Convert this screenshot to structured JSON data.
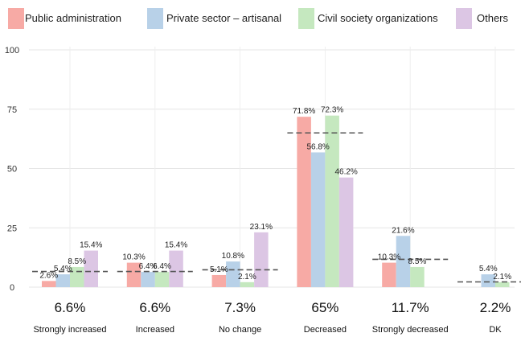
{
  "chart_data": {
    "type": "bar",
    "categories": [
      "Strongly increased",
      "Increased",
      "No change",
      "Decreased",
      "Strongly decreased",
      "DK"
    ],
    "series": [
      {
        "name": "Public administration",
        "color": "#f7aaa5",
        "values": [
          2.6,
          10.3,
          5.1,
          71.8,
          10.3,
          0
        ],
        "labels": [
          "2.6%",
          "10.3%",
          "5.1%",
          "71.8%",
          "10.3%",
          ""
        ]
      },
      {
        "name": "Private sector – artisanal",
        "color": "#b8d1e8",
        "values": [
          5.4,
          6.4,
          10.8,
          56.8,
          21.6,
          5.4
        ],
        "labels": [
          "5.4%",
          "6.4%",
          "10.8%",
          "56.8%",
          "21.6%",
          "5.4%"
        ]
      },
      {
        "name": "Civil society organizations",
        "color": "#c5e8bf",
        "values": [
          8.5,
          6.4,
          2.1,
          72.3,
          8.5,
          2.1
        ],
        "labels": [
          "8.5%",
          "6.4%",
          "2.1%",
          "72.3%",
          "8.5%",
          "2.1%"
        ]
      },
      {
        "name": "Others",
        "color": "#dcc6e4",
        "values": [
          15.4,
          15.4,
          23.1,
          46.2,
          0,
          0
        ],
        "labels": [
          "15.4%",
          "15.4%",
          "23.1%",
          "46.2%",
          "",
          ""
        ]
      }
    ],
    "totals": [
      6.6,
      6.6,
      7.3,
      65,
      11.7,
      2.2
    ],
    "total_labels": [
      "6.6%",
      "6.6%",
      "7.3%",
      "65%",
      "11.7%",
      "2.2%"
    ],
    "ylim": [
      0,
      100
    ],
    "yticks": [
      0,
      25,
      50,
      75,
      100
    ],
    "grid": true,
    "legend_position": "top",
    "average_line_style": "dashed",
    "average_line_color": "#555555"
  }
}
